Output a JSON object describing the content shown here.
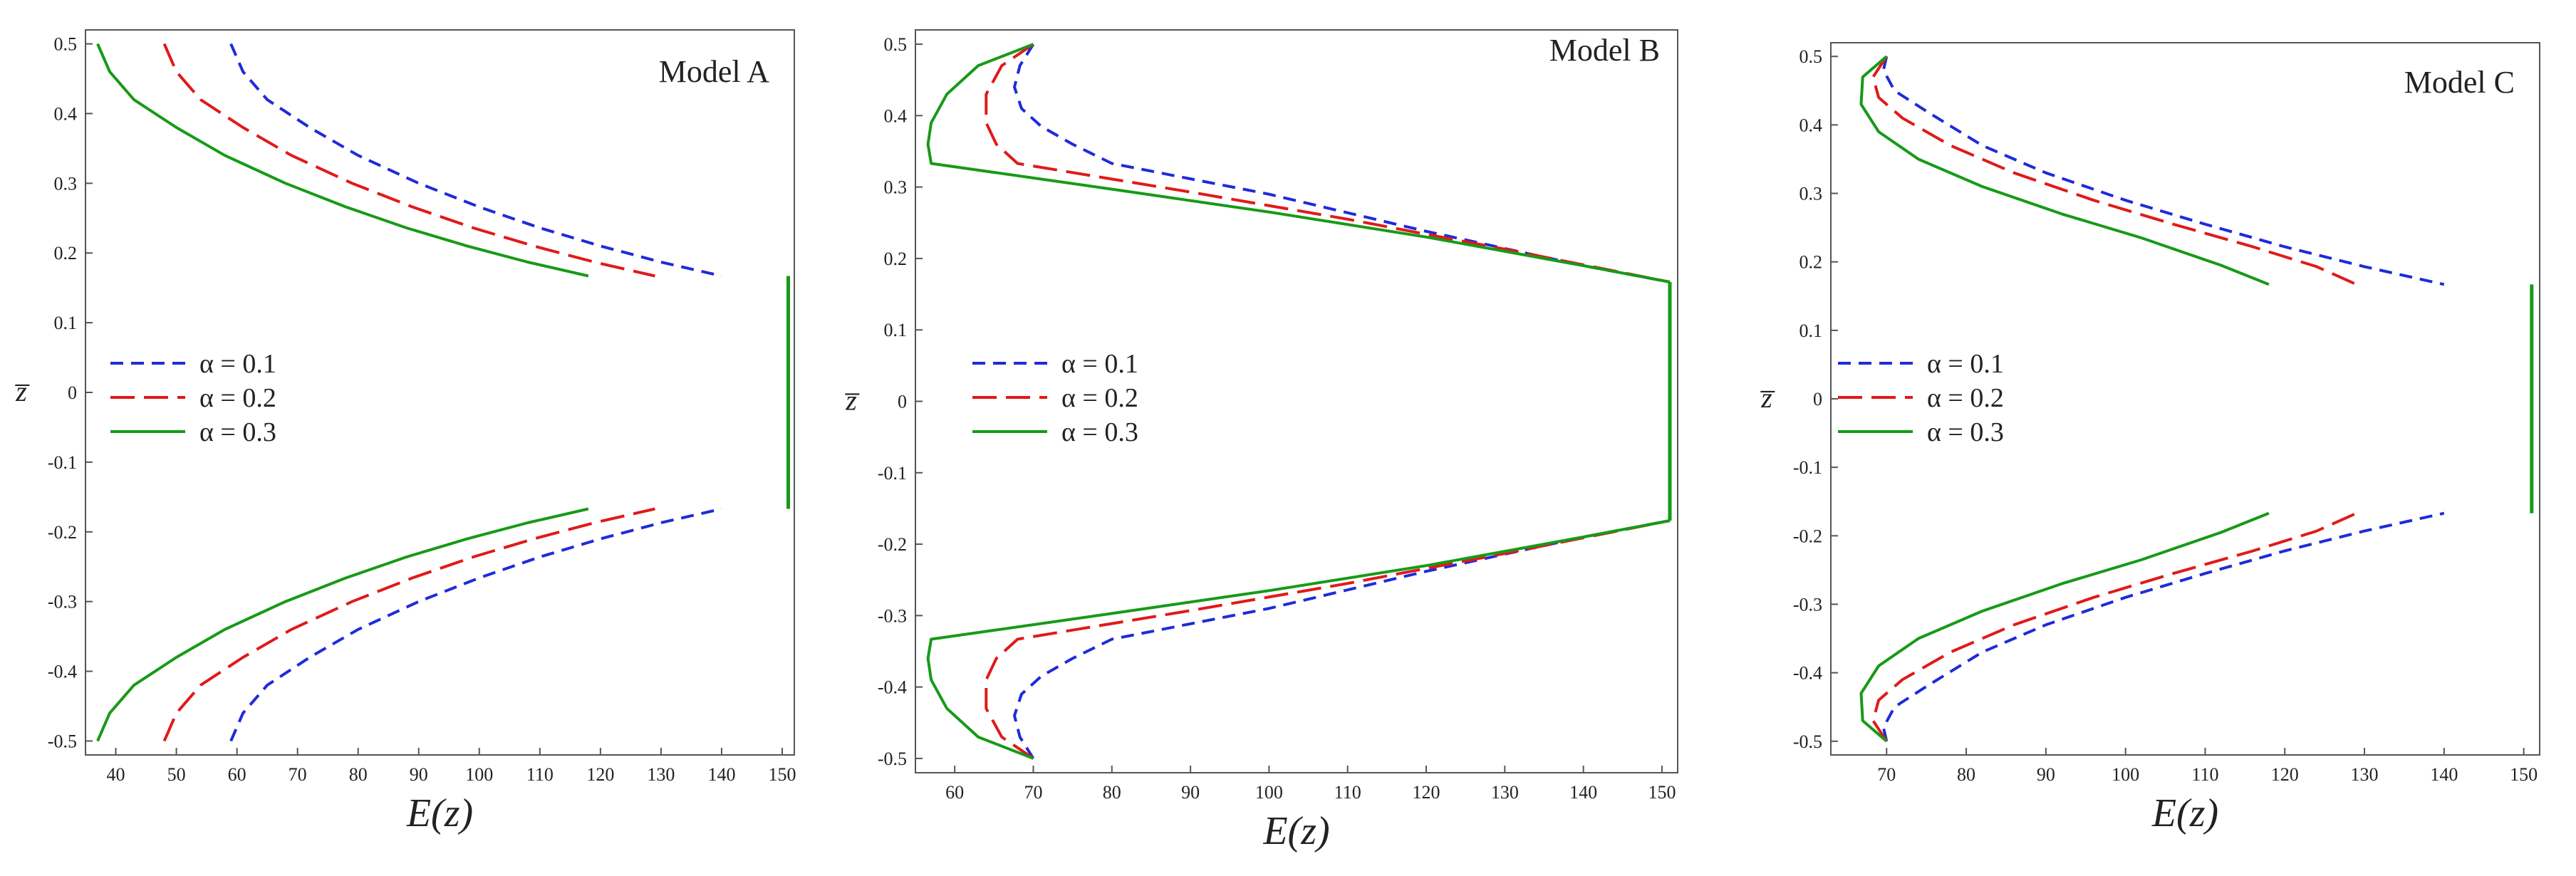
{
  "chart_data": [
    {
      "type": "line",
      "title": "Model A",
      "xlabel": "E(z)",
      "ylabel": "z̅",
      "xlim": [
        35,
        152
      ],
      "ylim": [
        -0.52,
        0.52
      ],
      "xticks": [
        "40",
        "50",
        "60",
        "70",
        "80",
        "90",
        "100",
        "110",
        "120",
        "130",
        "140",
        "150"
      ],
      "yticks": [
        "-0.5",
        "-0.4",
        "-0.3",
        "-0.2",
        "-0.1",
        "0",
        "0.1",
        "0.2",
        "0.3",
        "0.4",
        "0.5"
      ],
      "series": [
        {
          "name": "α = 0.1",
          "color": "#1f2bd8",
          "dash": "dashed",
          "upper": [
            [
              59,
              0.5
            ],
            [
              61,
              0.46
            ],
            [
              65,
              0.42
            ],
            [
              72,
              0.38
            ],
            [
              80,
              0.34
            ],
            [
              90,
              0.3
            ],
            [
              100,
              0.266
            ],
            [
              110,
              0.236
            ],
            [
              120,
              0.21
            ],
            [
              130,
              0.187
            ],
            [
              140,
              0.167
            ]
          ],
          "lower": [
            [
              59,
              -0.5
            ],
            [
              61,
              -0.46
            ],
            [
              65,
              -0.42
            ],
            [
              72,
              -0.38
            ],
            [
              80,
              -0.34
            ],
            [
              90,
              -0.3
            ],
            [
              100,
              -0.266
            ],
            [
              110,
              -0.236
            ],
            [
              120,
              -0.21
            ],
            [
              130,
              -0.187
            ],
            [
              140,
              -0.167
            ]
          ]
        },
        {
          "name": "α = 0.2",
          "color": "#e01a1a",
          "dash": "longdash",
          "upper": [
            [
              48,
              0.5
            ],
            [
              50,
              0.46
            ],
            [
              54,
              0.42
            ],
            [
              61,
              0.38
            ],
            [
              69,
              0.34
            ],
            [
              79,
              0.3
            ],
            [
              89,
              0.266
            ],
            [
              99,
              0.236
            ],
            [
              109,
              0.21
            ],
            [
              119,
              0.187
            ],
            [
              129,
              0.167
            ]
          ],
          "lower": [
            [
              48,
              -0.5
            ],
            [
              50,
              -0.46
            ],
            [
              54,
              -0.42
            ],
            [
              61,
              -0.38
            ],
            [
              69,
              -0.34
            ],
            [
              79,
              -0.3
            ],
            [
              89,
              -0.266
            ],
            [
              99,
              -0.236
            ],
            [
              109,
              -0.21
            ],
            [
              119,
              -0.187
            ],
            [
              129,
              -0.167
            ]
          ]
        },
        {
          "name": "α = 0.3",
          "color": "#179a17",
          "dash": "solid",
          "upper": [
            [
              37,
              0.5
            ],
            [
              39,
              0.46
            ],
            [
              43,
              0.42
            ],
            [
              50,
              0.38
            ],
            [
              58,
              0.34
            ],
            [
              68,
              0.3
            ],
            [
              78,
              0.266
            ],
            [
              88,
              0.236
            ],
            [
              98,
              0.21
            ],
            [
              108,
              0.187
            ],
            [
              118,
              0.167
            ]
          ],
          "lower": [
            [
              37,
              -0.5
            ],
            [
              39,
              -0.46
            ],
            [
              43,
              -0.42
            ],
            [
              50,
              -0.38
            ],
            [
              58,
              -0.34
            ],
            [
              68,
              -0.3
            ],
            [
              78,
              -0.266
            ],
            [
              88,
              -0.236
            ],
            [
              98,
              -0.21
            ],
            [
              108,
              -0.187
            ],
            [
              118,
              -0.167
            ]
          ],
          "core": [
            [
              151,
              -0.167
            ],
            [
              151,
              0.167
            ]
          ]
        }
      ]
    },
    {
      "type": "line",
      "title": "Model B",
      "xlabel": "E(z)",
      "ylabel": "z̅",
      "xlim": [
        55,
        152
      ],
      "ylim": [
        -0.52,
        0.52
      ],
      "xticks": [
        "60",
        "70",
        "80",
        "90",
        "100",
        "110",
        "120",
        "130",
        "140",
        "150"
      ],
      "yticks": [
        "-0.5",
        "-0.4",
        "-0.3",
        "-0.2",
        "-0.1",
        "0",
        "0.1",
        "0.2",
        "0.3",
        "0.4",
        "0.5"
      ],
      "series": [
        {
          "name": "α = 0.1",
          "color": "#1f2bd8",
          "dash": "dashed",
          "upper": [
            [
              70,
              0.5
            ],
            [
              68.3,
              0.47
            ],
            [
              67.6,
              0.44
            ],
            [
              68.5,
              0.41
            ],
            [
              71,
              0.385
            ],
            [
              75,
              0.36
            ],
            [
              80,
              0.333
            ],
            [
              100,
              0.29
            ],
            [
              120,
              0.238
            ],
            [
              140,
              0.19
            ],
            [
              151,
              0.167
            ]
          ],
          "lower": [
            [
              70,
              -0.5
            ],
            [
              68.3,
              -0.47
            ],
            [
              67.6,
              -0.44
            ],
            [
              68.5,
              -0.41
            ],
            [
              71,
              -0.385
            ],
            [
              75,
              -0.36
            ],
            [
              80,
              -0.333
            ],
            [
              100,
              -0.29
            ],
            [
              120,
              -0.238
            ],
            [
              140,
              -0.19
            ],
            [
              151,
              -0.167
            ]
          ]
        },
        {
          "name": "α = 0.2",
          "color": "#e01a1a",
          "dash": "longdash",
          "upper": [
            [
              70,
              0.5
            ],
            [
              66,
              0.47
            ],
            [
              64,
              0.43
            ],
            [
              64,
              0.39
            ],
            [
              65.3,
              0.36
            ],
            [
              68,
              0.333
            ],
            [
              90,
              0.293
            ],
            [
              110,
              0.255
            ],
            [
              130,
              0.213
            ],
            [
              151,
              0.167
            ]
          ],
          "lower": [
            [
              70,
              -0.5
            ],
            [
              66,
              -0.47
            ],
            [
              64,
              -0.43
            ],
            [
              64,
              -0.39
            ],
            [
              65.3,
              -0.36
            ],
            [
              68,
              -0.333
            ],
            [
              90,
              -0.293
            ],
            [
              110,
              -0.255
            ],
            [
              130,
              -0.213
            ],
            [
              151,
              -0.167
            ]
          ]
        },
        {
          "name": "α = 0.3",
          "color": "#179a17",
          "dash": "solid",
          "upper": [
            [
              70,
              0.5
            ],
            [
              63,
              0.47
            ],
            [
              59,
              0.43
            ],
            [
              57,
              0.39
            ],
            [
              56.6,
              0.36
            ],
            [
              57,
              0.333
            ],
            [
              80,
              0.297
            ],
            [
              100,
              0.265
            ],
            [
              120,
              0.23
            ],
            [
              140,
              0.19
            ],
            [
              151,
              0.167
            ]
          ],
          "lower": [
            [
              70,
              -0.5
            ],
            [
              63,
              -0.47
            ],
            [
              59,
              -0.43
            ],
            [
              57,
              -0.39
            ],
            [
              56.6,
              -0.36
            ],
            [
              57,
              -0.333
            ],
            [
              80,
              -0.297
            ],
            [
              100,
              -0.265
            ],
            [
              120,
              -0.23
            ],
            [
              140,
              -0.19
            ],
            [
              151,
              -0.167
            ]
          ],
          "core": [
            [
              151,
              -0.167
            ],
            [
              151,
              0.167
            ]
          ]
        }
      ]
    },
    {
      "type": "line",
      "title": "Model C",
      "xlabel": "E(z)",
      "ylabel": "z̅",
      "xlim": [
        63,
        152
      ],
      "ylim": [
        -0.52,
        0.52
      ],
      "xticks": [
        "70",
        "80",
        "90",
        "100",
        "110",
        "120",
        "130",
        "140",
        "150"
      ],
      "yticks": [
        "-0.5",
        "-0.4",
        "-0.3",
        "-0.2",
        "-0.1",
        "0",
        "0.1",
        "0.2",
        "0.3",
        "0.4",
        "0.5"
      ],
      "series": [
        {
          "name": "α = 0.1",
          "color": "#1f2bd8",
          "dash": "dashed",
          "upper": [
            [
              70,
              0.5
            ],
            [
              69.6,
              0.48
            ],
            [
              71,
              0.45
            ],
            [
              75,
              0.42
            ],
            [
              82,
              0.37
            ],
            [
              90,
              0.33
            ],
            [
              100,
              0.29
            ],
            [
              110,
              0.255
            ],
            [
              120,
              0.222
            ],
            [
              130,
              0.193
            ],
            [
              140,
              0.167
            ]
          ],
          "lower": [
            [
              70,
              -0.5
            ],
            [
              69.6,
              -0.48
            ],
            [
              71,
              -0.45
            ],
            [
              75,
              -0.42
            ],
            [
              82,
              -0.37
            ],
            [
              90,
              -0.33
            ],
            [
              100,
              -0.29
            ],
            [
              110,
              -0.255
            ],
            [
              120,
              -0.222
            ],
            [
              130,
              -0.193
            ],
            [
              140,
              -0.167
            ]
          ]
        },
        {
          "name": "α = 0.2",
          "color": "#e01a1a",
          "dash": "longdash",
          "upper": [
            [
              70,
              0.5
            ],
            [
              68.3,
              0.47
            ],
            [
              69,
              0.44
            ],
            [
              72,
              0.41
            ],
            [
              78,
              0.37
            ],
            [
              86,
              0.33
            ],
            [
              96,
              0.29
            ],
            [
              106,
              0.255
            ],
            [
              116,
              0.222
            ],
            [
              124,
              0.193
            ],
            [
              129,
              0.167
            ]
          ],
          "lower": [
            [
              70,
              -0.5
            ],
            [
              68.3,
              -0.47
            ],
            [
              69,
              -0.44
            ],
            [
              72,
              -0.41
            ],
            [
              78,
              -0.37
            ],
            [
              86,
              -0.33
            ],
            [
              96,
              -0.29
            ],
            [
              106,
              -0.255
            ],
            [
              116,
              -0.222
            ],
            [
              124,
              -0.193
            ],
            [
              129,
              -0.167
            ]
          ]
        },
        {
          "name": "α = 0.3",
          "color": "#179a17",
          "dash": "solid",
          "upper": [
            [
              70,
              0.5
            ],
            [
              67,
              0.47
            ],
            [
              66.8,
              0.43
            ],
            [
              69,
              0.39
            ],
            [
              74,
              0.35
            ],
            [
              82,
              0.31
            ],
            [
              92,
              0.27
            ],
            [
              102,
              0.235
            ],
            [
              112,
              0.195
            ],
            [
              118,
              0.167
            ]
          ],
          "lower": [
            [
              70,
              -0.5
            ],
            [
              67,
              -0.47
            ],
            [
              66.8,
              -0.43
            ],
            [
              69,
              -0.39
            ],
            [
              74,
              -0.35
            ],
            [
              82,
              -0.31
            ],
            [
              92,
              -0.27
            ],
            [
              102,
              -0.235
            ],
            [
              112,
              -0.195
            ],
            [
              118,
              -0.167
            ]
          ],
          "core": [
            [
              151,
              -0.167
            ],
            [
              151,
              0.167
            ]
          ]
        }
      ]
    }
  ]
}
